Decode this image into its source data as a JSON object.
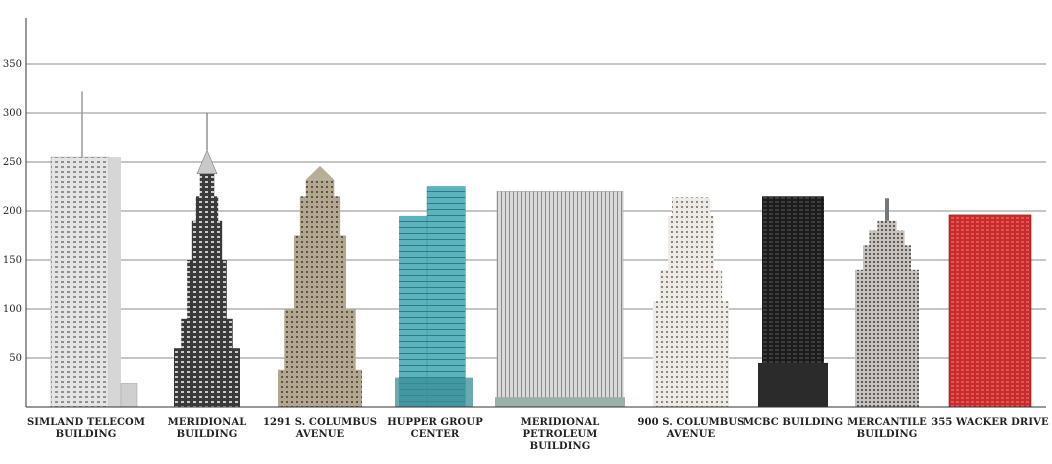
{
  "chart_data": {
    "type": "bar",
    "title": "",
    "xlabel": "",
    "ylabel": "",
    "ylim": [
      0,
      380
    ],
    "yticks": [
      50,
      100,
      150,
      200,
      250,
      300,
      350
    ],
    "grid": true,
    "categories": [
      [
        "SIMLAND TELECOM",
        "BUILDING"
      ],
      [
        "MERIDIONAL",
        "BUILDING"
      ],
      [
        "1291 S. COLUMBUS",
        "AVENUE"
      ],
      [
        "HUPPER GROUP",
        "CENTER"
      ],
      [
        "MERIDIONAL",
        "PETROLEUM",
        "BUILDING"
      ],
      [
        "900 S. COLUMBUS",
        "AVENUE"
      ],
      [
        "MCBC BUILDING"
      ],
      [
        "MERCANTILE",
        "BUILDING"
      ],
      [
        "355 WACKER DRIVE"
      ]
    ],
    "values": [
      255,
      255,
      246,
      225,
      220,
      214,
      215,
      213,
      196
    ],
    "spire_heights": [
      322,
      300,
      246,
      225,
      220,
      214,
      215,
      213,
      196
    ],
    "colors": [
      "#b8b8b8",
      "#6e6e6e",
      "#a09580",
      "#4aa3ad",
      "#d9d9d9",
      "#e8e4df",
      "#2a2a2a",
      "#b5b0ac",
      "#c42a2a"
    ]
  }
}
